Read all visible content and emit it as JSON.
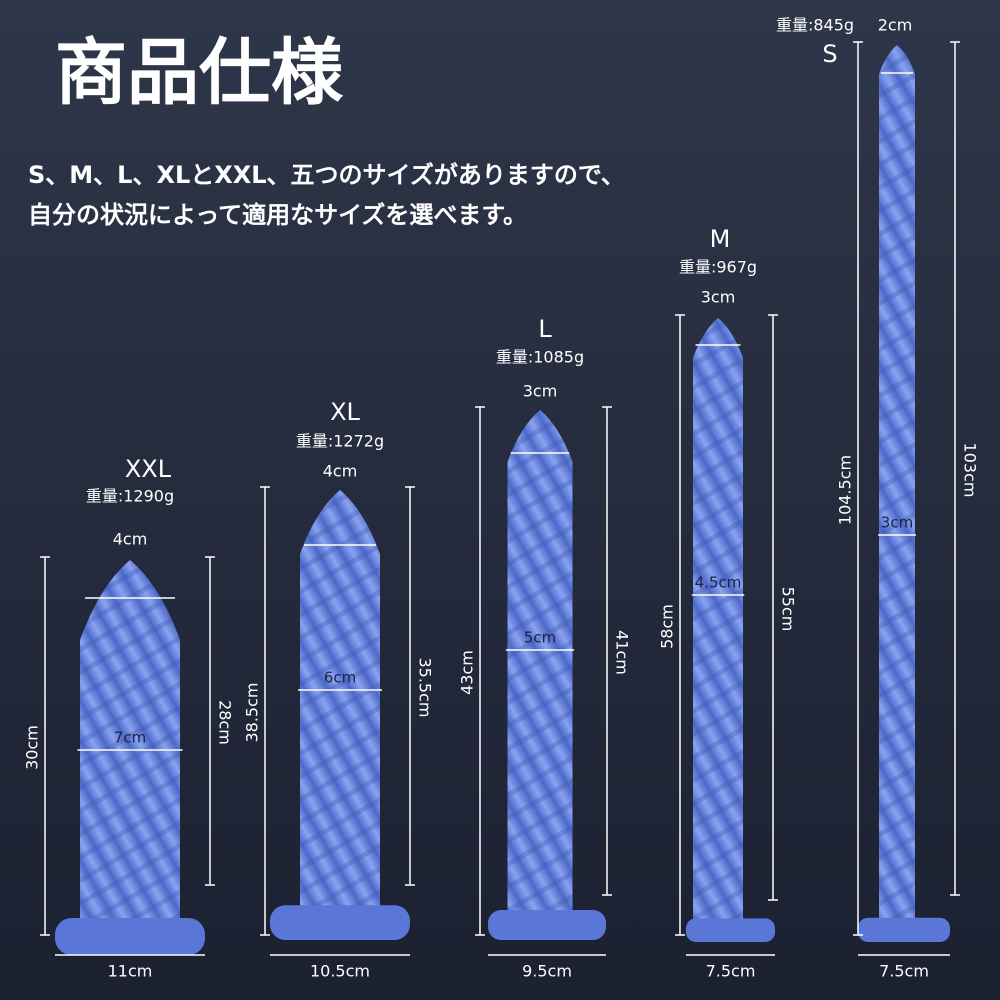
{
  "header": {
    "title": "商品仕様",
    "description": [
      "S、M、L、XLとXXL、五つのサイズがありますので、",
      "自分の状況によって適用なサイズを選べます。"
    ]
  },
  "products": [
    {
      "size": "XXL",
      "weight": "重量:1290g",
      "tip": "4cm",
      "width": "7cm",
      "height_left": "30cm",
      "height_right": "28cm",
      "base": "11cm"
    },
    {
      "size": "XL",
      "weight": "重量:1272g",
      "tip": "4cm",
      "width": "6cm",
      "height_left": "38.5cm",
      "height_right": "35.5cm",
      "base": "10.5cm"
    },
    {
      "size": "L",
      "weight": "重量:1085g",
      "tip": "3cm",
      "width": "5cm",
      "height_left": "43cm",
      "height_right": "41cm",
      "base": "9.5cm"
    },
    {
      "size": "M",
      "weight": "重量:967g",
      "tip": "3cm",
      "width": "4.5cm",
      "height_left": "58cm",
      "height_right": "55cm",
      "base": "7.5cm"
    },
    {
      "size": "S",
      "weight": "重量:845g",
      "tip": "2cm",
      "width": "3cm",
      "height_left": "104.5cm",
      "height_right": "103cm",
      "base": "7.5cm"
    }
  ]
}
